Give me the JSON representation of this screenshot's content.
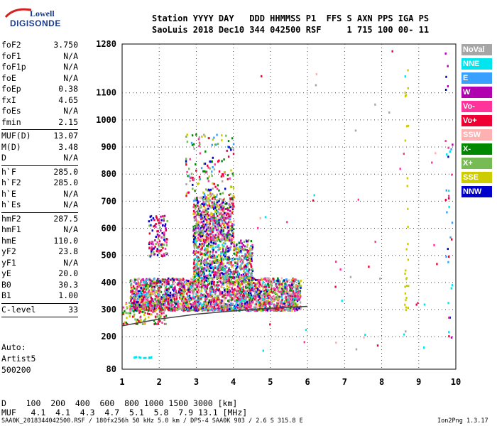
{
  "logo": {
    "line1": "Lowell",
    "line2": "DIGISONDE"
  },
  "header": {
    "line1": "Station YYYY DAY   DDD HHMMSS P1  FFS S AXN PPS IGA PS",
    "line2": "SaoLuis 2018 Dec10 344 042500 RSF     1 715 100 00- 11"
  },
  "params": {
    "group1": [
      {
        "k": "foF2",
        "v": "3.750"
      },
      {
        "k": "foF1",
        "v": "N/A"
      },
      {
        "k": "foF1p",
        "v": "N/A"
      },
      {
        "k": "foE",
        "v": "N/A"
      },
      {
        "k": "foEp",
        "v": "0.38"
      },
      {
        "k": "fxI",
        "v": "4.65"
      },
      {
        "k": "foEs",
        "v": "N/A"
      },
      {
        "k": "fmin",
        "v": "2.15"
      }
    ],
    "group2": [
      {
        "k": "MUF(D)",
        "v": "13.07"
      },
      {
        "k": "M(D)",
        "v": "3.48"
      },
      {
        "k": "D",
        "v": "N/A"
      }
    ],
    "group3": [
      {
        "k": "h`F",
        "v": "285.0"
      },
      {
        "k": "h`F2",
        "v": "285.0"
      },
      {
        "k": "h`E",
        "v": "N/A"
      },
      {
        "k": "h`Es",
        "v": "N/A"
      }
    ],
    "group4": [
      {
        "k": "hmF2",
        "v": "287.5"
      },
      {
        "k": "hmF1",
        "v": "N/A"
      },
      {
        "k": "hmE",
        "v": "110.0"
      },
      {
        "k": "yF2",
        "v": "23.8"
      },
      {
        "k": "yF1",
        "v": "N/A"
      },
      {
        "k": "yE",
        "v": "20.0"
      },
      {
        "k": "B0",
        "v": "30.3"
      },
      {
        "k": "B1",
        "v": "1.00"
      }
    ],
    "group5": [
      {
        "k": "C-level",
        "v": "33"
      }
    ]
  },
  "autoscale": {
    "line1": "Auto:",
    "line2": "Artist5",
    "line3": "500200"
  },
  "legend": [
    {
      "label": "NoVal",
      "color": "#a6a6a6"
    },
    {
      "label": "NNE",
      "color": "#00e5ee"
    },
    {
      "label": "E",
      "color": "#3aa0ff"
    },
    {
      "label": "W",
      "color": "#b000b0"
    },
    {
      "label": "Vo-",
      "color": "#ff3399"
    },
    {
      "label": "Vo+",
      "color": "#ee0033"
    },
    {
      "label": "SSW",
      "color": "#ffb0b0"
    },
    {
      "label": "X-",
      "color": "#008800"
    },
    {
      "label": "X+",
      "color": "#77bb55"
    },
    {
      "label": "SSE",
      "color": "#cccc00"
    },
    {
      "label": "NNW",
      "color": "#0000cc"
    }
  ],
  "muf_table": {
    "row_d": "D    100  200  400  600  800 1000 1500 3000 [km]",
    "row_muf": "MUF   4.1  4.1  4.3  4.7  5.1  5.8  7.9 13.1 [MHz]"
  },
  "footer": {
    "left": "SAA0K_2018344042500.RSF / 180fx256h 50 kHz 5.0 km / DPS-4 SAA0K 903 / 2.6 S 315.8 E",
    "right": "Ion2Png 1.3.17"
  },
  "chart_data": {
    "type": "scatter",
    "xlim": [
      1,
      10
    ],
    "ylim": [
      80,
      1280
    ],
    "x_ticks": [
      "1",
      "2",
      "3",
      "4",
      "5",
      "6",
      "7",
      "8",
      "9",
      "10"
    ],
    "y_ticks": [
      "80",
      "200",
      "300",
      "400",
      "500",
      "600",
      "700",
      "800",
      "900",
      "1000",
      "1100",
      "1280"
    ],
    "y_tick_values": [
      80,
      200,
      300,
      400,
      500,
      600,
      700,
      800,
      900,
      1000,
      1100,
      1280
    ],
    "grid": true,
    "legend_position": "right",
    "clusters": [
      {
        "fmin": 1.2,
        "fmax": 5.8,
        "hmin": 300,
        "hmax": 420,
        "n": 2600,
        "colors": [
          4,
          5,
          6,
          4,
          5,
          1,
          2,
          3,
          7,
          8,
          9,
          10,
          0
        ]
      },
      {
        "fmin": 2.9,
        "fmax": 4.5,
        "hmin": 420,
        "hmax": 560,
        "n": 700,
        "colors": [
          4,
          5,
          1,
          2,
          3,
          7,
          8,
          9,
          10,
          0
        ]
      },
      {
        "fmin": 2.9,
        "fmax": 4.0,
        "hmin": 560,
        "hmax": 720,
        "n": 650,
        "colors": [
          5,
          4,
          3,
          6,
          7,
          8,
          10,
          0,
          9,
          2
        ]
      },
      {
        "fmin": 2.7,
        "fmax": 4.0,
        "hmin": 720,
        "hmax": 950,
        "n": 150,
        "colors": [
          9,
          8,
          7,
          0,
          4,
          5,
          10,
          2
        ]
      },
      {
        "fmin": 1.7,
        "fmax": 2.2,
        "hmin": 500,
        "hmax": 650,
        "n": 120,
        "colors": [
          5,
          4,
          3,
          10,
          8
        ]
      },
      {
        "fmin": 1.0,
        "fmax": 2.2,
        "hmin": 250,
        "hmax": 330,
        "n": 120,
        "colors": [
          7,
          8,
          9,
          4,
          5
        ]
      },
      {
        "fmin": 8.6,
        "fmax": 8.7,
        "hmin": 300,
        "hmax": 1200,
        "n": 30,
        "colors": [
          9
        ]
      },
      {
        "fmin": 9.7,
        "fmax": 9.9,
        "hmin": 200,
        "hmax": 1260,
        "n": 35,
        "colors": [
          10,
          3,
          4,
          5,
          1,
          2
        ]
      },
      {
        "fmin": 4.5,
        "fmax": 9.5,
        "hmin": 150,
        "hmax": 1270,
        "n": 45,
        "colors": [
          6,
          1,
          4,
          5,
          0
        ]
      },
      {
        "fmin": 1.3,
        "fmax": 1.8,
        "hmin": 125,
        "hmax": 130,
        "n": 12,
        "colors": [
          1
        ]
      }
    ],
    "trace": {
      "x": [
        1.0,
        2.0,
        3.0,
        4.0,
        5.0,
        6.0
      ],
      "y": [
        240,
        265,
        283,
        295,
        305,
        312
      ],
      "color": "#444444"
    }
  }
}
